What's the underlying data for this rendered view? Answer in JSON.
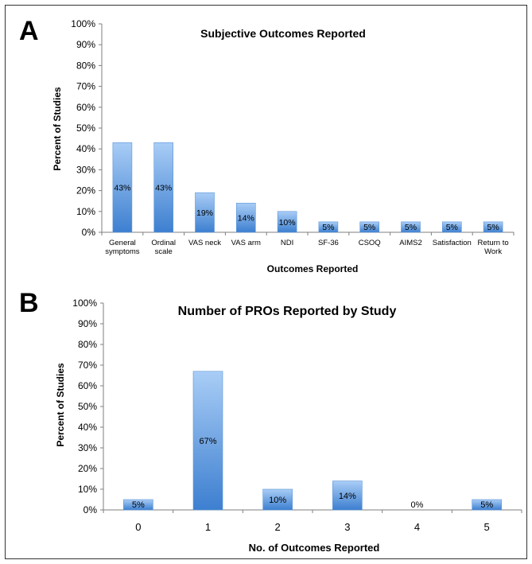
{
  "colors": {
    "bar_top": "#a9cdf6",
    "bar_bottom": "#3d7fd0",
    "bar_edge": "#5c95d8",
    "axis": "#7f7f7f"
  },
  "chart_data": [
    {
      "panel": "A",
      "type": "bar",
      "title": "Subjective Outcomes Reported",
      "xlabel": "Outcomes Reported",
      "ylabel": "Percent of Studies",
      "ylim": [
        0,
        100
      ],
      "yticks": [
        "0%",
        "10%",
        "20%",
        "30%",
        "40%",
        "50%",
        "60%",
        "70%",
        "80%",
        "90%",
        "100%"
      ],
      "categories": [
        [
          "General",
          "symptoms"
        ],
        [
          "Ordinal",
          "scale"
        ],
        [
          "VAS neck"
        ],
        [
          "VAS arm"
        ],
        [
          "NDI"
        ],
        [
          "SF-36"
        ],
        [
          "CSOQ"
        ],
        [
          "AIMS2"
        ],
        [
          "Satisfaction"
        ],
        [
          "Return to",
          "Work"
        ]
      ],
      "values": [
        43,
        43,
        19,
        14,
        10,
        5,
        5,
        5,
        5,
        5
      ],
      "data_labels": [
        "43%",
        "43%",
        "19%",
        "14%",
        "10%",
        "5%",
        "5%",
        "5%",
        "5%",
        "5%"
      ],
      "grid": false
    },
    {
      "panel": "B",
      "type": "bar",
      "title": "Number of PROs Reported by Study",
      "xlabel": "No. of Outcomes Reported",
      "ylabel": "Percent of Studies",
      "ylim": [
        0,
        100
      ],
      "yticks": [
        "0%",
        "10%",
        "20%",
        "30%",
        "40%",
        "50%",
        "60%",
        "70%",
        "80%",
        "90%",
        "100%"
      ],
      "categories": [
        [
          "0"
        ],
        [
          "1"
        ],
        [
          "2"
        ],
        [
          "3"
        ],
        [
          "4"
        ],
        [
          "5"
        ]
      ],
      "values": [
        5,
        67,
        10,
        14,
        0,
        5
      ],
      "data_labels": [
        "5%",
        "67%",
        "10%",
        "14%",
        "0%",
        "5%"
      ],
      "grid": false
    }
  ]
}
